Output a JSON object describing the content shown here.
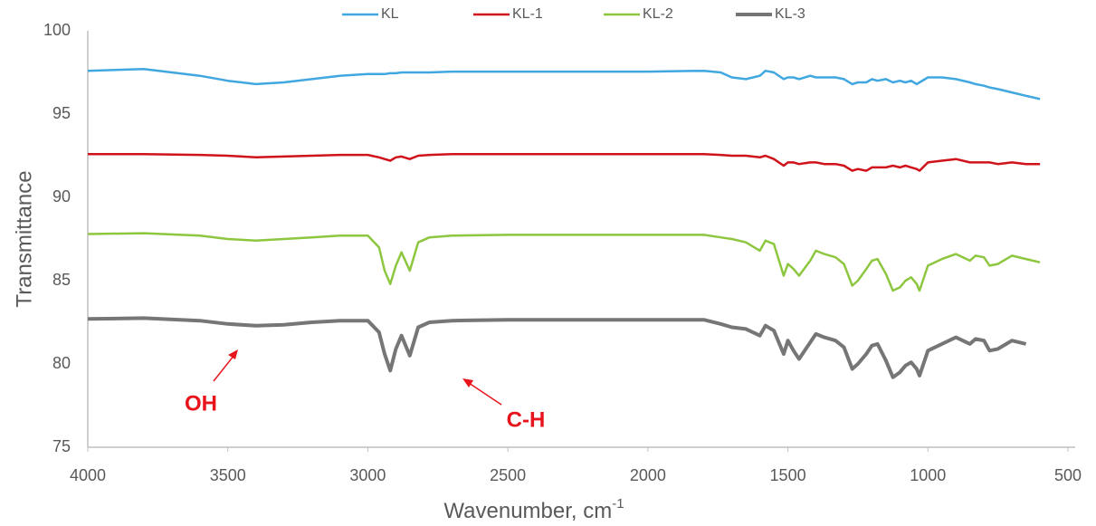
{
  "chart_data": {
    "type": "line",
    "xlabel": "Wavenumber, cm",
    "xlabel_superscript": "-1",
    "ylabel": "Transmittance",
    "xlim": [
      4000,
      500
    ],
    "xticks": [
      4000,
      3500,
      3000,
      2500,
      2000,
      1500,
      1000,
      500
    ],
    "ylim": [
      75,
      100
    ],
    "yticks": [
      75,
      80,
      85,
      90,
      95,
      100
    ],
    "grid": false,
    "legend": "top",
    "annotations": [
      {
        "text": "OH",
        "color": "#e8141c"
      },
      {
        "text": "C-H",
        "color": "#e8141c"
      }
    ],
    "x": [
      4000,
      3800,
      3600,
      3500,
      3400,
      3300,
      3200,
      3100,
      3000,
      2960,
      2940,
      2920,
      2900,
      2880,
      2850,
      2820,
      2780,
      2700,
      2500,
      2000,
      1800,
      1740,
      1700,
      1650,
      1600,
      1580,
      1550,
      1515,
      1500,
      1480,
      1460,
      1420,
      1400,
      1370,
      1330,
      1300,
      1270,
      1250,
      1220,
      1200,
      1180,
      1150,
      1125,
      1100,
      1080,
      1060,
      1040,
      1030,
      1000,
      950,
      900,
      850,
      830,
      800,
      780,
      750,
      700,
      650,
      600
    ],
    "series": [
      {
        "name": "KL",
        "color": "#41a7e0",
        "values": [
          97.6,
          97.7,
          97.3,
          97.0,
          96.8,
          96.9,
          97.1,
          97.3,
          97.4,
          97.4,
          97.4,
          97.45,
          97.45,
          97.5,
          97.5,
          97.5,
          97.5,
          97.55,
          97.55,
          97.55,
          97.6,
          97.5,
          97.2,
          97.1,
          97.3,
          97.6,
          97.5,
          97.1,
          97.2,
          97.2,
          97.1,
          97.3,
          97.2,
          97.2,
          97.2,
          97.1,
          96.8,
          96.9,
          96.9,
          97.1,
          97.0,
          97.1,
          96.9,
          97.0,
          96.9,
          97.0,
          96.8,
          96.9,
          97.2,
          97.2,
          97.1,
          96.9,
          96.8,
          96.7,
          96.6,
          96.5,
          96.3,
          96.1,
          95.9
        ]
      },
      {
        "name": "KL-1",
        "color": "#d0131b",
        "values": [
          92.6,
          92.6,
          92.55,
          92.5,
          92.4,
          92.45,
          92.5,
          92.55,
          92.55,
          92.4,
          92.3,
          92.2,
          92.4,
          92.45,
          92.3,
          92.5,
          92.55,
          92.6,
          92.6,
          92.6,
          92.6,
          92.55,
          92.5,
          92.5,
          92.4,
          92.5,
          92.3,
          91.9,
          92.1,
          92.1,
          92.0,
          92.1,
          92.1,
          92.0,
          92.0,
          91.9,
          91.6,
          91.7,
          91.6,
          91.8,
          91.8,
          91.8,
          91.9,
          91.8,
          91.9,
          91.8,
          91.7,
          91.6,
          92.1,
          92.2,
          92.3,
          92.1,
          92.1,
          92.1,
          92.1,
          92.0,
          92.1,
          92.0,
          92.0
        ]
      },
      {
        "name": "KL-2",
        "color": "#8dc63f",
        "values": [
          87.8,
          87.85,
          87.7,
          87.5,
          87.4,
          87.5,
          87.6,
          87.7,
          87.7,
          87.0,
          85.6,
          84.8,
          85.9,
          86.7,
          85.6,
          87.3,
          87.6,
          87.7,
          87.75,
          87.75,
          87.75,
          87.6,
          87.5,
          87.3,
          86.8,
          87.4,
          87.2,
          85.3,
          86.0,
          85.7,
          85.3,
          86.2,
          86.8,
          86.6,
          86.4,
          86.0,
          84.7,
          85.0,
          85.7,
          86.2,
          86.3,
          85.4,
          84.4,
          84.6,
          85.0,
          85.2,
          84.8,
          84.4,
          85.9,
          86.3,
          86.6,
          86.2,
          86.5,
          86.4,
          85.9,
          86.0,
          86.5,
          86.3,
          86.1
        ]
      },
      {
        "name": "KL-3",
        "color": "#767676",
        "values": [
          82.7,
          82.75,
          82.6,
          82.4,
          82.3,
          82.35,
          82.5,
          82.6,
          82.6,
          81.9,
          80.6,
          79.6,
          80.9,
          81.7,
          80.5,
          82.2,
          82.5,
          82.6,
          82.65,
          82.65,
          82.65,
          82.4,
          82.2,
          82.1,
          81.7,
          82.3,
          82.0,
          80.6,
          81.4,
          80.8,
          80.3,
          81.3,
          81.8,
          81.6,
          81.4,
          81.0,
          79.7,
          80.0,
          80.6,
          81.1,
          81.2,
          80.2,
          79.2,
          79.5,
          79.9,
          80.1,
          79.7,
          79.3,
          80.8,
          81.2,
          81.6,
          81.2,
          81.5,
          81.4,
          80.8,
          80.9,
          81.4,
          81.2,
          null
        ]
      }
    ]
  }
}
